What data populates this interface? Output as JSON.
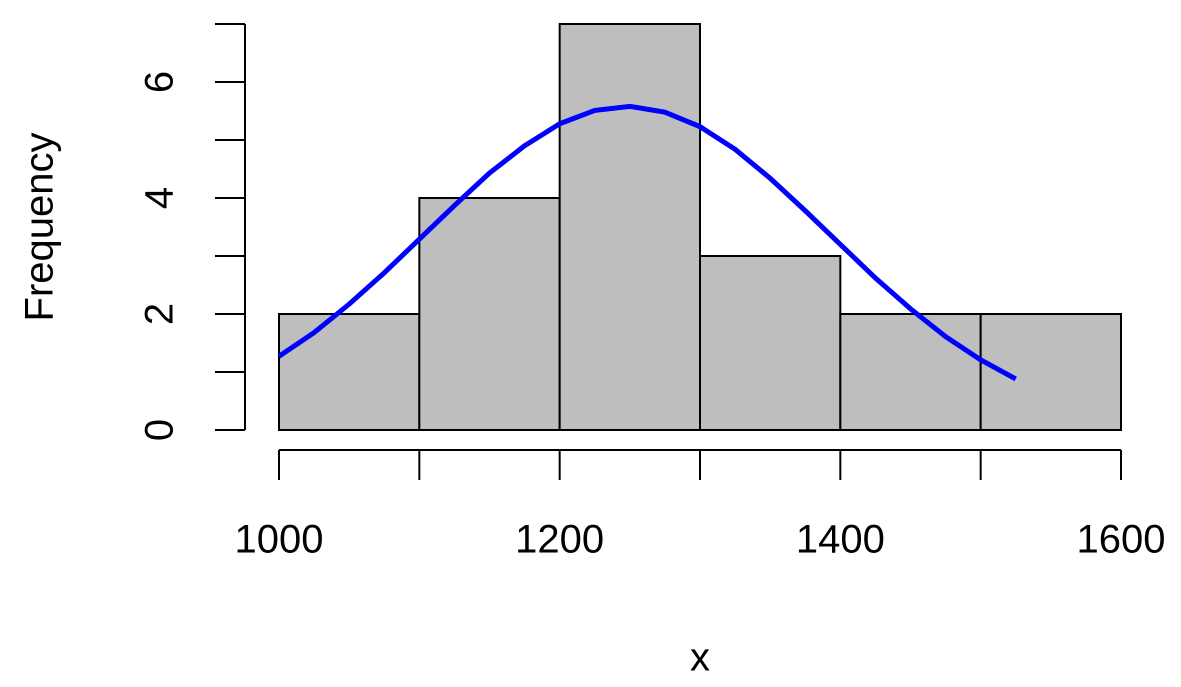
{
  "chart_data": {
    "type": "histogram",
    "xlabel": "x",
    "ylabel": "Frequency",
    "bins": [
      1000,
      1100,
      1200,
      1300,
      1400,
      1500,
      1600
    ],
    "values": [
      2,
      4,
      7,
      3,
      2,
      2
    ],
    "color": "#bebebe",
    "xlim": [
      1000,
      1600
    ],
    "ylim": [
      0,
      7
    ],
    "xticks": [
      1000,
      {
        "value": 1100,
        "label": null
      },
      1200,
      {
        "value": 1300,
        "label": null
      },
      1400,
      {
        "value": 1500,
        "label": null
      },
      1600
    ],
    "yticks": [
      0,
      {
        "value": 1,
        "label": null
      },
      2,
      {
        "value": 3,
        "label": null
      },
      4,
      {
        "value": 5,
        "label": null
      },
      6,
      {
        "value": 7,
        "label": null
      }
    ],
    "overlay": {
      "type": "line",
      "color": "#0000ff",
      "x": [
        1000,
        1025,
        1050,
        1075,
        1100,
        1125,
        1150,
        1175,
        1200,
        1225,
        1250,
        1275,
        1300,
        1325,
        1350,
        1375,
        1400,
        1425,
        1450,
        1475,
        1500,
        1525
      ],
      "values": [
        1.27,
        1.68,
        2.17,
        2.71,
        3.29,
        3.87,
        4.43,
        4.9,
        5.28,
        5.51,
        5.58,
        5.48,
        5.23,
        4.84,
        4.34,
        3.78,
        3.2,
        2.62,
        2.09,
        1.61,
        1.21,
        0.88
      ]
    }
  }
}
